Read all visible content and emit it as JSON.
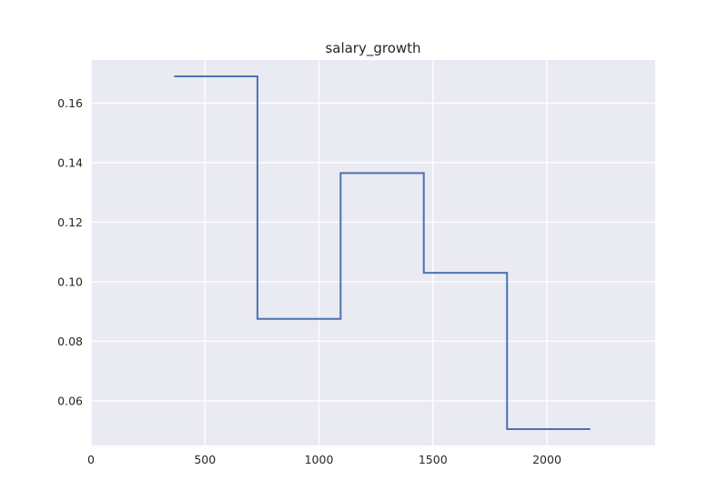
{
  "chart_data": {
    "type": "line",
    "title": "salary_growth",
    "xlabel": "",
    "ylabel": "",
    "xlim": [
      0,
      2475
    ],
    "ylim": [
      0.045,
      0.1745
    ],
    "grid": true,
    "style": "step",
    "x_ticks": [
      0,
      500,
      1000,
      1500,
      2000
    ],
    "x_tick_labels": [
      "0",
      "500",
      "1000",
      "1500",
      "2000"
    ],
    "y_ticks": [
      0.06,
      0.08,
      0.1,
      0.12,
      0.14,
      0.16
    ],
    "y_tick_labels": [
      "0.06",
      "0.08",
      "0.10",
      "0.12",
      "0.14",
      "0.16"
    ],
    "series": [
      {
        "color": "#4c72b0",
        "points": [
          [
            365,
            0.169
          ],
          [
            730,
            0.169
          ],
          [
            730,
            0.0875
          ],
          [
            1095,
            0.0875
          ],
          [
            1095,
            0.1365
          ],
          [
            1460,
            0.1365
          ],
          [
            1460,
            0.103
          ],
          [
            1825,
            0.103
          ],
          [
            1825,
            0.0505
          ],
          [
            2190,
            0.0505
          ]
        ]
      }
    ],
    "colors": {
      "plot_bg": "#eaeaf2",
      "grid": "#ffffff",
      "line": "#4c72b0"
    }
  }
}
